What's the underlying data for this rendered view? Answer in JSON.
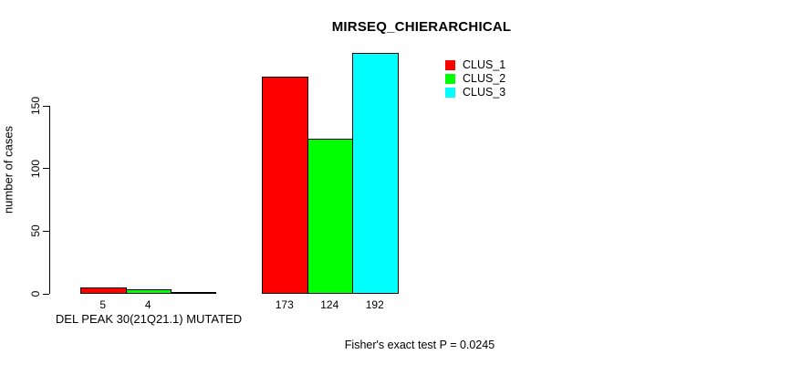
{
  "title": "MIRSEQ_CHIERARCHICAL",
  "ylabel": "number of cases",
  "group_label": "DEL PEAK 30(21Q21.1) MUTATED",
  "footer": "Fisher's exact test P = 0.0245",
  "legend": {
    "items": [
      {
        "label": "CLUS_1",
        "color": "#ff0000"
      },
      {
        "label": "CLUS_2",
        "color": "#00ff00"
      },
      {
        "label": "CLUS_3",
        "color": "#00ffff"
      }
    ]
  },
  "chart_data": {
    "type": "bar",
    "title": "MIRSEQ_CHIERARCHICAL",
    "ylabel": "number of cases",
    "xlabel": "",
    "categories": [
      "DEL PEAK 30(21Q21.1) MUTATED",
      ""
    ],
    "series": [
      {
        "name": "CLUS_1",
        "color": "#ff0000",
        "values": [
          5,
          173
        ]
      },
      {
        "name": "CLUS_2",
        "color": "#00ff00",
        "values": [
          4,
          124
        ]
      },
      {
        "name": "CLUS_3",
        "color": "#00ffff",
        "values": [
          0,
          192
        ]
      }
    ],
    "value_labels": [
      [
        "5",
        "4",
        ""
      ],
      [
        "173",
        "124",
        "192"
      ]
    ],
    "yticks": [
      0,
      50,
      100,
      150
    ],
    "ylim": [
      0,
      192
    ],
    "grid": false,
    "legend_position": "top-right",
    "annotation": "Fisher's exact test P = 0.0245"
  }
}
